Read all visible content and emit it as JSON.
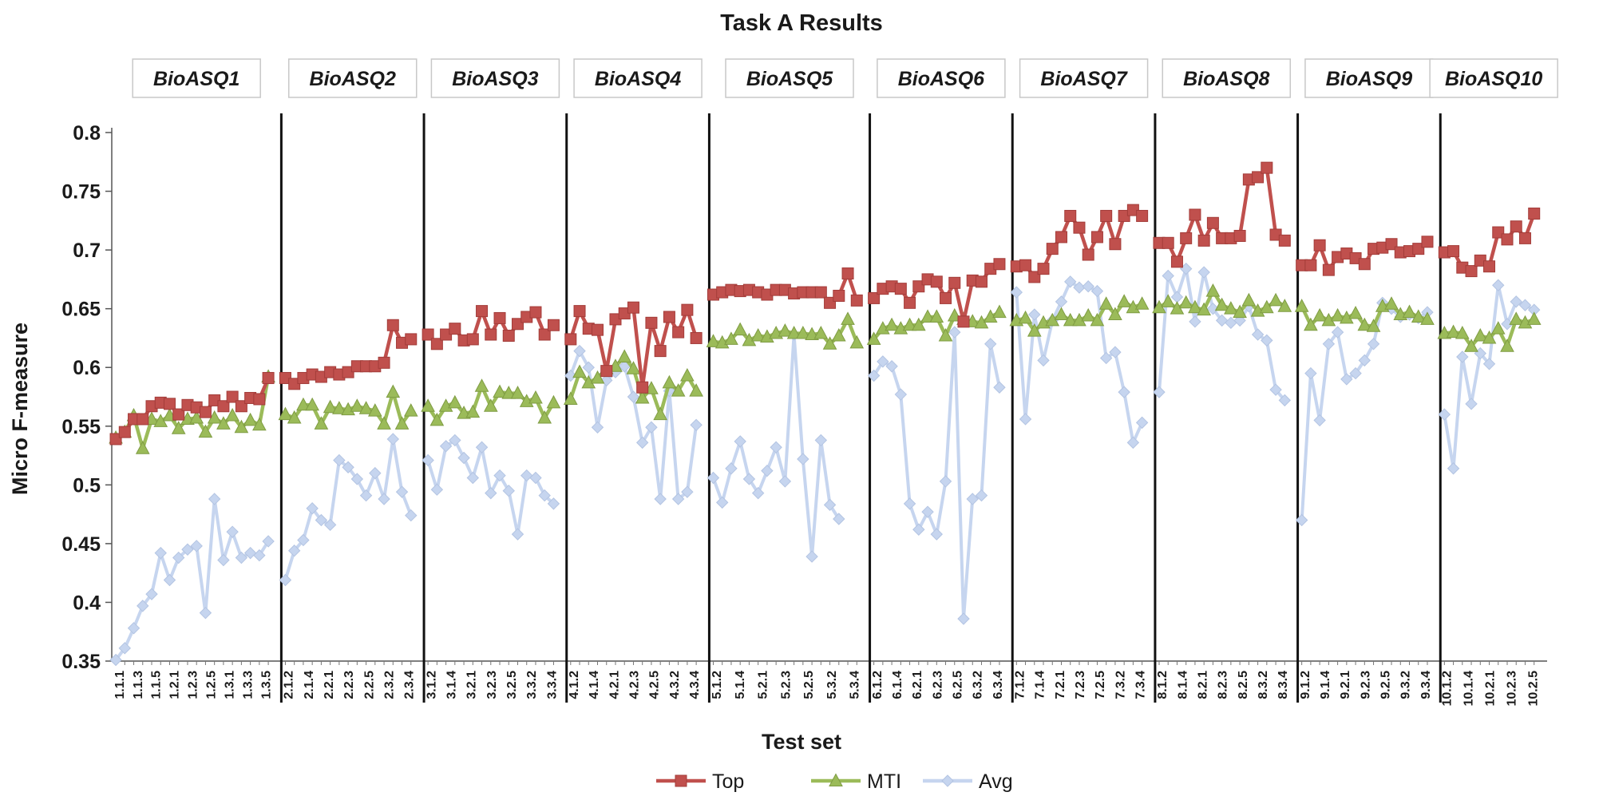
{
  "chart_data": {
    "type": "line",
    "title": "Task A Results",
    "xlabel": "Test set",
    "ylabel": "Micro F-measure",
    "ylim": [
      0.35,
      0.8
    ],
    "yticks": [
      "0.35",
      "0.4",
      "0.45",
      "0.5",
      "0.55",
      "0.6",
      "0.65",
      "0.7",
      "0.75",
      "0.8"
    ],
    "grid": false,
    "legend_position": "bottom",
    "groups": [
      {
        "label": "BioASQ1",
        "tick_labels": [
          "1.1.1",
          "1.1.3",
          "1.1.5",
          "1.2.1",
          "1.2.3",
          "1.2.5",
          "1.3.1",
          "1.3.3",
          "1.3.5"
        ]
      },
      {
        "label": "BioASQ2",
        "tick_labels": [
          "2.1.2",
          "2.1.4",
          "2.2.1",
          "2.2.3",
          "2.2.5",
          "2.3.2",
          "2.3.4"
        ]
      },
      {
        "label": "BioASQ3",
        "tick_labels": [
          "3.1.2",
          "3.1.4",
          "3.2.1",
          "3.2.3",
          "3.2.5",
          "3.3.2",
          "3.3.4"
        ]
      },
      {
        "label": "BioASQ4",
        "tick_labels": [
          "4.1.2",
          "4.1.4",
          "4.2.1",
          "4.2.3",
          "4.2.5",
          "4.3.2",
          "4.3.4"
        ]
      },
      {
        "label": "BioASQ5",
        "tick_labels": [
          "5.1.2",
          "5.1.4",
          "5.2.1",
          "5.2.3",
          "5.2.5",
          "5.3.2",
          "5.3.4"
        ]
      },
      {
        "label": "BioASQ6",
        "tick_labels": [
          "6.1.2",
          "6.1.4",
          "6.2.1",
          "6.2.3",
          "6.2.5",
          "6.3.2",
          "6.3.4"
        ]
      },
      {
        "label": "BioASQ7",
        "tick_labels": [
          "7.1.2",
          "7.1.4",
          "7.2.1",
          "7.2.3",
          "7.2.5",
          "7.3.2",
          "7.3.4"
        ]
      },
      {
        "label": "BioASQ8",
        "tick_labels": [
          "8.1.2",
          "8.1.4",
          "8.2.1",
          "8.2.3",
          "8.2.5",
          "8.3.2",
          "8.3.4"
        ]
      },
      {
        "label": "BioASQ9",
        "tick_labels": [
          "9.1.2",
          "9.1.4",
          "9.2.1",
          "9.2.3",
          "9.2.5",
          "9.3.2",
          "9.3.4"
        ]
      },
      {
        "label": "BioASQ10",
        "tick_labels": [
          "10.1.2",
          "10.1.4",
          "10.2.1",
          "10.2.3",
          "10.2.5"
        ]
      }
    ],
    "series": [
      {
        "name": "Top",
        "color": "#c0504d",
        "marker": "square",
        "groups": [
          [
            0.539,
            0.545,
            0.556,
            0.556,
            0.567,
            0.57,
            0.569,
            0.56,
            0.568,
            0.566,
            0.562,
            0.572,
            0.567,
            0.575,
            0.567,
            0.574,
            0.573,
            0.591
          ],
          [
            0.591,
            0.586,
            0.591,
            0.594,
            0.592,
            0.596,
            0.594,
            0.596,
            0.601,
            0.601,
            0.601,
            0.604,
            0.636,
            0.621,
            0.624
          ],
          [
            0.628,
            0.62,
            0.628,
            0.633,
            0.623,
            0.624,
            0.648,
            0.628,
            0.642,
            0.627,
            0.637,
            0.643,
            0.647,
            0.628,
            0.636
          ],
          [
            0.624,
            0.648,
            0.633,
            0.632,
            0.597,
            0.641,
            0.646,
            0.651,
            0.583,
            0.638,
            0.614,
            0.643,
            0.63,
            0.649,
            0.625
          ],
          [
            0.662,
            0.664,
            0.666,
            0.665,
            0.666,
            0.664,
            0.662,
            0.666,
            0.666,
            0.663,
            0.664,
            0.664,
            0.664,
            0.655,
            0.661,
            0.68,
            0.657
          ],
          [
            0.659,
            0.667,
            0.669,
            0.667,
            0.655,
            0.669,
            0.675,
            0.673,
            0.659,
            0.672,
            0.639,
            0.674,
            0.673,
            0.684,
            0.688
          ],
          [
            0.686,
            0.687,
            0.677,
            0.684,
            0.701,
            0.711,
            0.729,
            0.719,
            0.696,
            0.711,
            0.729,
            0.705,
            0.729,
            0.734,
            0.729
          ],
          [
            0.706,
            0.706,
            0.69,
            0.71,
            0.73,
            0.708,
            0.723,
            0.71,
            0.71,
            0.712,
            0.76,
            0.762,
            0.77,
            0.713,
            0.708
          ],
          [
            0.687,
            0.687,
            0.704,
            0.683,
            0.694,
            0.697,
            0.693,
            0.688,
            0.701,
            0.702,
            0.705,
            0.698,
            0.699,
            0.701,
            0.707
          ],
          [
            0.698,
            0.699,
            0.685,
            0.682,
            0.691,
            0.686,
            0.715,
            0.709,
            0.72,
            0.71,
            0.731
          ]
        ]
      },
      {
        "name": "MTI",
        "color": "#9bbb59",
        "marker": "triangle",
        "groups": [
          [
            0.54,
            0.545,
            0.559,
            0.531,
            0.556,
            0.554,
            0.559,
            0.548,
            0.556,
            0.557,
            0.545,
            0.557,
            0.552,
            0.559,
            0.549,
            0.555,
            0.551,
            0.592
          ],
          [
            0.56,
            0.557,
            0.568,
            0.568,
            0.552,
            0.566,
            0.565,
            0.564,
            0.567,
            0.565,
            0.563,
            0.552,
            0.579,
            0.552,
            0.563
          ],
          [
            0.567,
            0.555,
            0.567,
            0.57,
            0.561,
            0.562,
            0.584,
            0.567,
            0.579,
            0.578,
            0.578,
            0.571,
            0.574,
            0.557,
            0.57
          ],
          [
            0.573,
            0.596,
            0.587,
            0.591,
            0.599,
            0.601,
            0.609,
            0.599,
            0.574,
            0.582,
            0.56,
            0.587,
            0.58,
            0.593,
            0.58
          ],
          [
            0.622,
            0.621,
            0.624,
            0.632,
            0.623,
            0.627,
            0.626,
            0.629,
            0.631,
            0.629,
            0.629,
            0.628,
            0.629,
            0.62,
            0.627,
            0.641,
            0.621
          ],
          [
            0.624,
            0.633,
            0.636,
            0.633,
            0.636,
            0.636,
            0.643,
            0.643,
            0.627,
            0.644,
            0.641,
            0.639,
            0.638,
            0.643,
            0.647
          ],
          [
            0.64,
            0.642,
            0.631,
            0.638,
            0.64,
            0.645,
            0.64,
            0.64,
            0.644,
            0.64,
            0.654,
            0.645,
            0.656,
            0.651,
            0.654
          ],
          [
            0.651,
            0.656,
            0.65,
            0.655,
            0.651,
            0.649,
            0.665,
            0.653,
            0.65,
            0.647,
            0.657,
            0.648,
            0.651,
            0.657,
            0.652
          ],
          [
            0.652,
            0.636,
            0.644,
            0.64,
            0.644,
            0.642,
            0.646,
            0.636,
            0.635,
            0.652,
            0.654,
            0.645,
            0.647,
            0.643,
            0.641
          ],
          [
            0.629,
            0.63,
            0.629,
            0.618,
            0.627,
            0.625,
            0.633,
            0.618,
            0.641,
            0.638,
            0.641
          ]
        ]
      },
      {
        "name": "Avg",
        "color": "#c6d5ef",
        "marker": "diamond",
        "groups": [
          [
            0.351,
            0.361,
            0.378,
            0.397,
            0.407,
            0.442,
            0.419,
            0.438,
            0.445,
            0.448,
            0.391,
            0.488,
            0.436,
            0.46,
            0.438,
            0.442,
            0.44,
            0.452
          ],
          [
            0.419,
            0.444,
            0.453,
            0.48,
            0.47,
            0.466,
            0.521,
            0.515,
            0.505,
            0.491,
            0.51,
            0.488,
            0.539,
            0.494,
            0.474
          ],
          [
            0.521,
            0.496,
            0.533,
            0.538,
            0.523,
            0.506,
            0.532,
            0.493,
            0.508,
            0.495,
            0.458,
            0.508,
            0.506,
            0.491,
            0.484
          ],
          [
            0.593,
            0.614,
            0.6,
            0.549,
            0.589,
            0.596,
            0.601,
            0.575,
            0.536,
            0.549,
            0.488,
            0.58,
            0.488,
            0.494,
            0.551
          ],
          [
            0.506,
            0.485,
            0.514,
            0.537,
            0.505,
            0.493,
            0.512,
            0.532,
            0.503,
            0.628,
            0.522,
            0.439,
            0.538,
            0.483,
            0.471
          ],
          [
            0.593,
            0.605,
            0.601,
            0.577,
            0.484,
            0.462,
            0.477,
            0.458,
            0.503,
            0.63,
            0.386,
            0.488,
            0.491,
            0.62,
            0.583
          ],
          [
            0.664,
            0.556,
            0.645,
            0.606,
            0.64,
            0.656,
            0.673,
            0.668,
            0.669,
            0.665,
            0.608,
            0.613,
            0.579,
            0.536,
            0.553
          ],
          [
            0.579,
            0.678,
            0.66,
            0.684,
            0.639,
            0.681,
            0.65,
            0.64,
            0.638,
            0.64,
            0.652,
            0.628,
            0.623,
            0.581,
            0.572
          ],
          [
            0.47,
            0.595,
            0.555,
            0.62,
            0.63,
            0.59,
            0.595,
            0.606,
            0.62,
            0.655,
            0.65,
            0.643,
            0.645,
            0.642,
            0.647
          ],
          [
            0.56,
            0.514,
            0.609,
            0.569,
            0.612,
            0.603,
            0.67,
            0.637,
            0.656,
            0.653,
            0.649
          ]
        ]
      }
    ]
  }
}
